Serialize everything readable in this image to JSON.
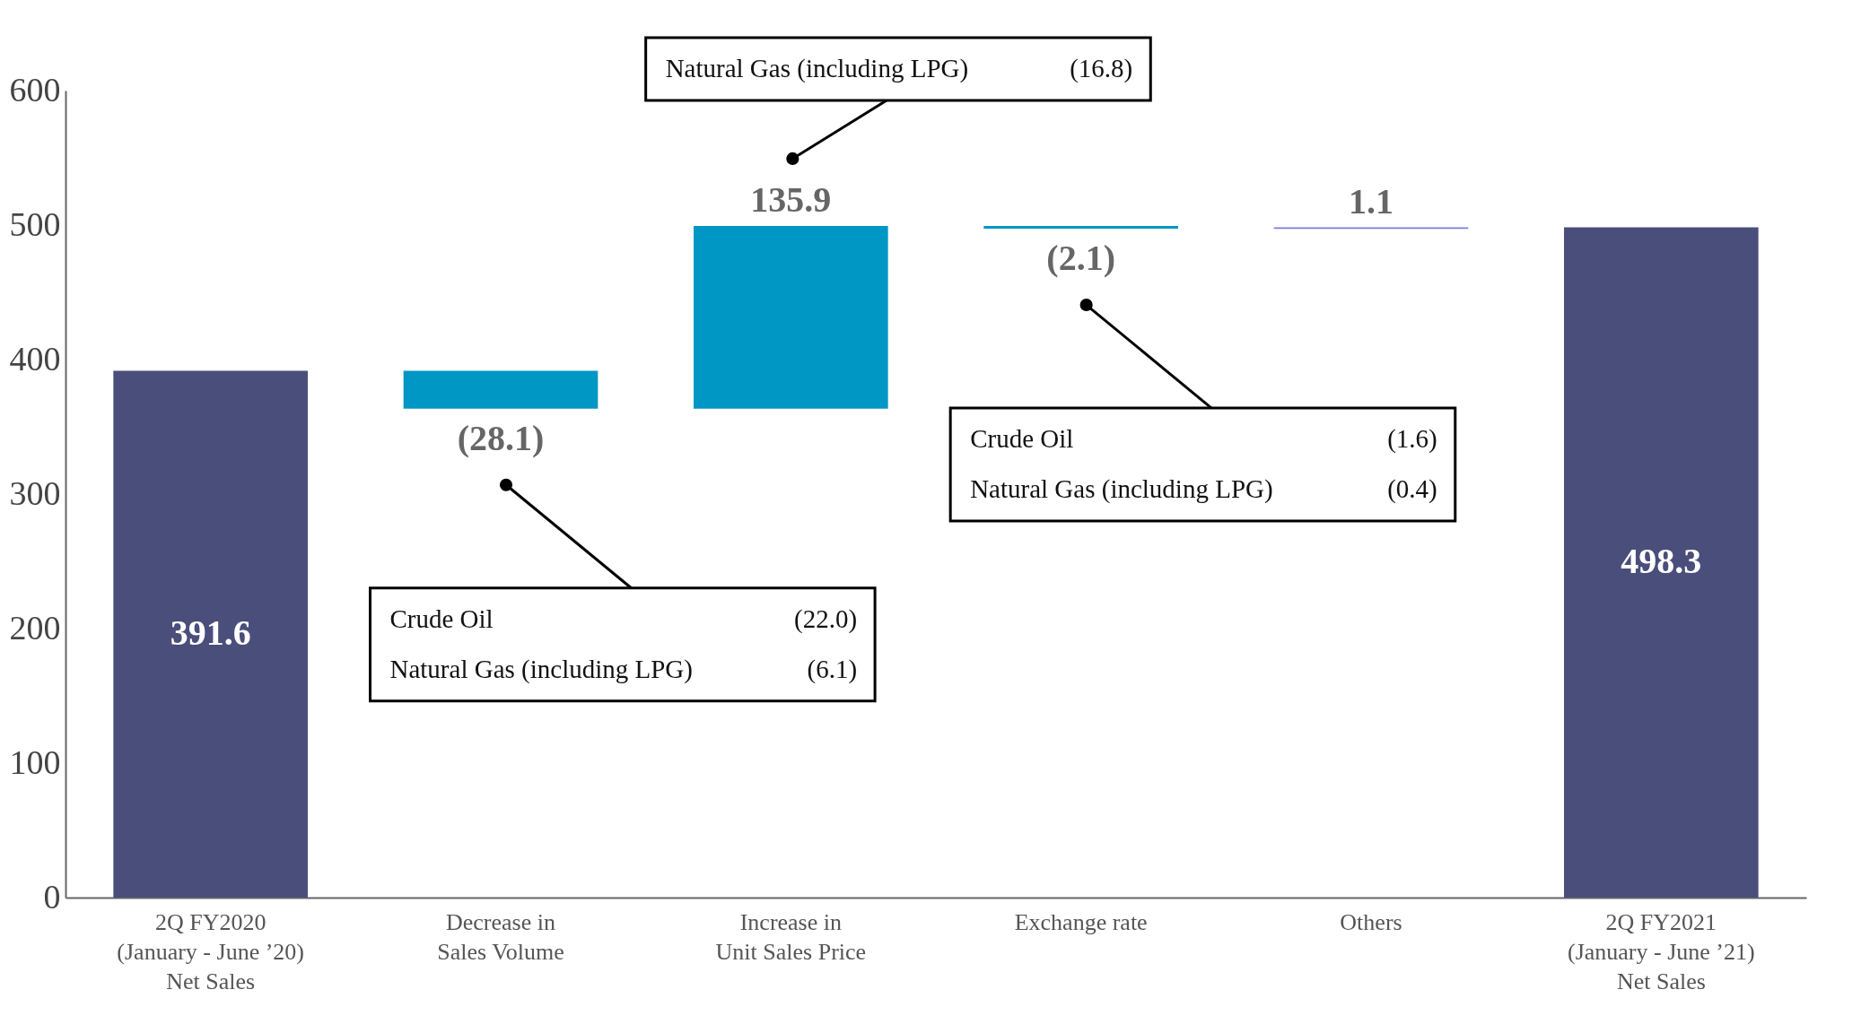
{
  "chart_data": {
    "type": "bar",
    "categories": [
      "2Q FY2020\n(January - June ’20)\nNet Sales",
      "Decrease in\nSales Volume",
      "Increase in\nUnit Sales Price",
      "Exchange rate",
      "Others",
      "2Q FY2021\n(January - June ’21)\nNet Sales"
    ],
    "values": [
      391.6,
      -28.1,
      135.9,
      -2.1,
      1.1,
      498.3
    ],
    "base": [
      0,
      391.6,
      363.5,
      499.4,
      497.2,
      0
    ],
    "colors": [
      "#4a4e7a",
      "#0097c4",
      "#0097c4",
      "#0097c4",
      "#7b7fe0",
      "#4a4e7a"
    ],
    "value_labels": [
      "391.6",
      "(28.1)",
      "135.9",
      "(2.1)",
      "1.1",
      "498.3"
    ],
    "ylim": [
      0,
      600
    ],
    "yticks": [
      0,
      100,
      200,
      300,
      400,
      500,
      600
    ],
    "grid": false,
    "annotations": [
      "Natural Gas (including LPG)",
      "(16.8)",
      "Crude Oil",
      "(22.0)",
      "Natural Gas (including LPG)",
      "(6.1)",
      "Crude Oil",
      "(1.6)",
      "Natural Gas (including LPG)",
      "(0.4)"
    ]
  }
}
